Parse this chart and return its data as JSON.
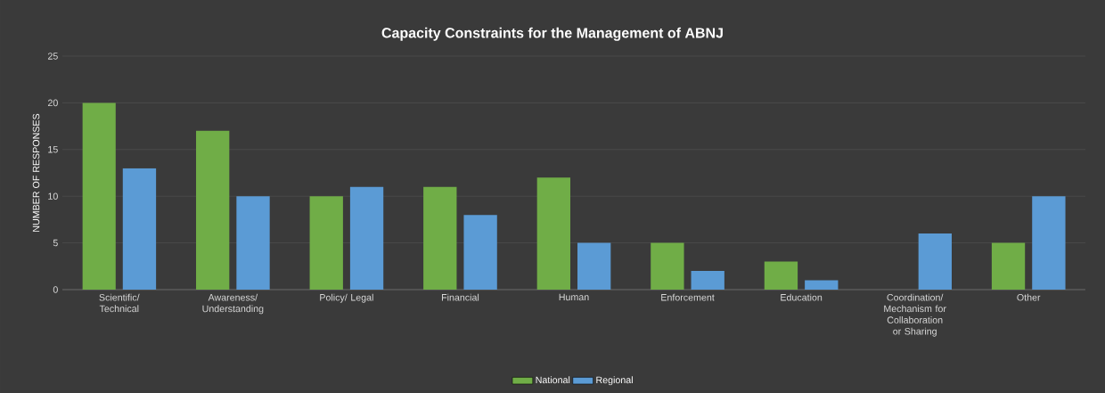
{
  "chart_data": {
    "type": "bar",
    "title": "Capacity Constraints for the Management of ABNJ",
    "ylabel": "NUMBER OF RESPONSES",
    "categories": [
      "Scientific/ Technical",
      "Awareness/ Understanding",
      "Policy/ Legal",
      "Financial",
      "Human",
      "Enforcement",
      "Education",
      "Coordination/ Mechanism for Collaboration or Sharing",
      "Other"
    ],
    "series": [
      {
        "name": "National",
        "color": "#70ad47",
        "values": [
          20,
          17,
          10,
          11,
          12,
          5,
          3,
          0,
          5
        ]
      },
      {
        "name": "Regional",
        "color": "#5b9bd5",
        "values": [
          13,
          10,
          11,
          8,
          5,
          2,
          1,
          6,
          10
        ]
      }
    ],
    "ylim": [
      0,
      25
    ],
    "yticks": [
      0,
      5,
      10,
      15,
      20,
      25
    ],
    "grid": "y",
    "legend": "bottom"
  }
}
